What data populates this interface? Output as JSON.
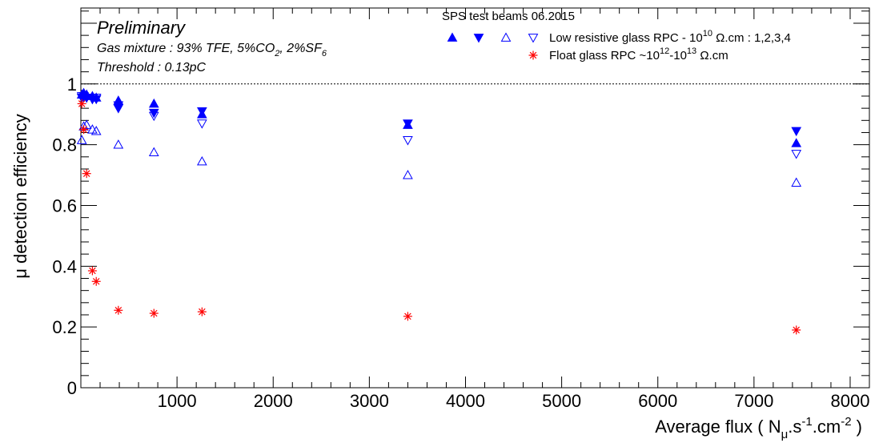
{
  "chart_data": {
    "type": "scatter",
    "xlabel": {
      "main": "Average flux ( N",
      "sub": "μ",
      "mid": ".s",
      "sup1": "-1",
      "mid2": ".cm",
      "sup2": "-2",
      "end": " )"
    },
    "ylabel": "μ detection efficiency",
    "xlim": [
      0,
      8200
    ],
    "ylim": [
      0,
      1.25
    ],
    "x_ticks": [
      1000,
      2000,
      3000,
      4000,
      5000,
      6000,
      7000,
      8000
    ],
    "y_ticks": [
      0,
      0.2,
      0.4,
      0.6,
      0.8,
      1
    ],
    "x_tick_labels": [
      "1000",
      "2000",
      "3000",
      "4000",
      "5000",
      "6000",
      "7000",
      "8000"
    ],
    "y_tick_labels": [
      "0",
      "0.2",
      "0.4",
      "0.6",
      "0.8",
      "1"
    ],
    "reference_line": 1.0,
    "annotations": {
      "preliminary": "Preliminary",
      "gas_pre": "Gas mixture : 93% TFE, 5%CO",
      "gas_sub1": "2",
      "gas_mid": ", 2%SF",
      "gas_sub2": "6",
      "threshold": "Threshold : 0.13pC"
    },
    "legend": {
      "header": "SPS test beams 06.2015",
      "entry1": {
        "pre": "Low resistive glass RPC - 10",
        "sup": "10",
        "post": " Ω.cm : 1,2,3,4"
      },
      "entry2": {
        "pre": "Float glass RPC ~10",
        "sup1": "12",
        "mid": "-10",
        "sup2": "13",
        "post": " Ω.cm"
      }
    },
    "series": [
      {
        "marker": "triangle-up-filled",
        "color": "#0000ff",
        "points": [
          [
            10,
            0.965
          ],
          [
            30,
            0.97
          ],
          [
            60,
            0.965
          ],
          [
            120,
            0.96
          ],
          [
            160,
            0.955
          ],
          [
            390,
            0.945
          ],
          [
            760,
            0.935
          ],
          [
            1260,
            0.9
          ],
          [
            3400,
            0.865
          ],
          [
            7440,
            0.805
          ]
        ]
      },
      {
        "marker": "triangle-down-filled",
        "color": "#0000ff",
        "points": [
          [
            10,
            0.955
          ],
          [
            30,
            0.96
          ],
          [
            60,
            0.955
          ],
          [
            120,
            0.95
          ],
          [
            160,
            0.95
          ],
          [
            390,
            0.92
          ],
          [
            760,
            0.905
          ],
          [
            1260,
            0.91
          ],
          [
            3400,
            0.87
          ],
          [
            7440,
            0.845
          ]
        ]
      },
      {
        "marker": "triangle-up-open",
        "color": "#0000ff",
        "points": [
          [
            10,
            0.815
          ],
          [
            30,
            0.86
          ],
          [
            60,
            0.865
          ],
          [
            120,
            0.85
          ],
          [
            160,
            0.845
          ],
          [
            390,
            0.8
          ],
          [
            760,
            0.775
          ],
          [
            1260,
            0.745
          ],
          [
            3400,
            0.7
          ],
          [
            7440,
            0.675
          ]
        ]
      },
      {
        "marker": "triangle-down-open",
        "color": "#0000ff",
        "points": [
          [
            10,
            0.96
          ],
          [
            30,
            0.955
          ],
          [
            60,
            0.955
          ],
          [
            120,
            0.95
          ],
          [
            160,
            0.955
          ],
          [
            390,
            0.93
          ],
          [
            760,
            0.895
          ],
          [
            1260,
            0.87
          ],
          [
            3400,
            0.815
          ],
          [
            7440,
            0.77
          ]
        ]
      },
      {
        "marker": "star",
        "color": "#ff0000",
        "points": [
          [
            10,
            0.935
          ],
          [
            30,
            0.85
          ],
          [
            60,
            0.705
          ],
          [
            120,
            0.385
          ],
          [
            160,
            0.35
          ],
          [
            390,
            0.255
          ],
          [
            760,
            0.245
          ],
          [
            1260,
            0.25
          ],
          [
            3400,
            0.235
          ],
          [
            7440,
            0.19
          ]
        ]
      }
    ]
  }
}
